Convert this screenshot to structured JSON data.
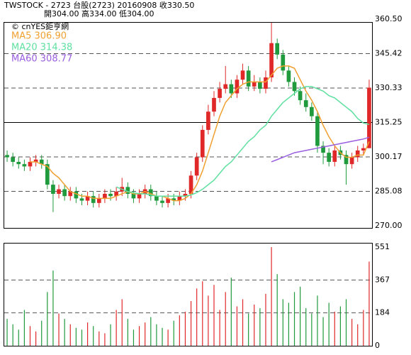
{
  "chart_data": {
    "type": "candlestick",
    "title": "TWSTOCK - 2723 台股(2723) 20160908 收330.50",
    "subtitle": "開304.00 高334.00 低304.00",
    "source": "© cnYES鉅亨網",
    "up_color": "#e02828",
    "down_color": "#1f9a3c",
    "open": [
      301,
      300,
      298,
      297,
      296,
      298,
      299,
      297,
      288,
      284,
      286,
      283,
      285,
      282,
      281,
      283,
      280,
      282,
      284,
      283,
      285,
      287,
      284,
      282,
      284,
      286,
      283,
      281,
      280,
      282,
      281,
      283,
      284,
      292,
      300,
      312,
      320,
      326,
      330,
      332,
      328,
      334,
      338,
      331,
      333,
      330,
      335,
      350,
      345,
      338,
      333,
      329,
      325,
      322,
      318,
      305,
      302,
      298,
      303,
      301,
      297,
      300,
      303,
      304
    ],
    "high": [
      303,
      302,
      300,
      299,
      300,
      301,
      301,
      299,
      290,
      288,
      288,
      287,
      287,
      284,
      285,
      285,
      284,
      286,
      286,
      287,
      291,
      289,
      286,
      286,
      288,
      288,
      285,
      283,
      284,
      284,
      285,
      286,
      294,
      302,
      314,
      323,
      329,
      333,
      340,
      334,
      336,
      341,
      340,
      336,
      335,
      338,
      359,
      352,
      347,
      340,
      335,
      331,
      328,
      324,
      320,
      307,
      304,
      305,
      305,
      303,
      302,
      305,
      306,
      334
    ],
    "low": [
      298,
      296,
      295,
      294,
      294,
      296,
      295,
      286,
      276,
      282,
      281,
      281,
      280,
      279,
      279,
      278,
      278,
      280,
      281,
      281,
      283,
      282,
      280,
      280,
      282,
      281,
      279,
      278,
      278,
      279,
      279,
      281,
      282,
      290,
      298,
      310,
      318,
      324,
      328,
      326,
      326,
      332,
      329,
      329,
      328,
      328,
      333,
      343,
      336,
      331,
      327,
      323,
      320,
      316,
      302,
      297,
      296,
      296,
      299,
      288,
      295,
      298,
      301,
      304
    ],
    "close": [
      300,
      298,
      297,
      296,
      298,
      299,
      297,
      288,
      284,
      286,
      283,
      285,
      282,
      281,
      283,
      280,
      282,
      284,
      283,
      285,
      287,
      284,
      282,
      284,
      286,
      283,
      281,
      280,
      282,
      281,
      283,
      284,
      292,
      300,
      312,
      320,
      326,
      330,
      332,
      328,
      334,
      338,
      331,
      333,
      330,
      335,
      350,
      345,
      338,
      333,
      329,
      325,
      322,
      318,
      305,
      302,
      298,
      303,
      301,
      297,
      300,
      303,
      304,
      330.5
    ],
    "ylim": [
      270,
      360.5
    ],
    "yticks": [
      {
        "value": 270,
        "label": "270.00"
      },
      285.08,
      300.17,
      315.25,
      330.33,
      345.42,
      {
        "value": 360.5,
        "label": "360.50"
      }
    ],
    "series": [
      {
        "name": "MA5 306.90",
        "color": "#f0a030",
        "values": [
          null,
          null,
          null,
          null,
          298,
          298,
          297,
          296,
          293,
          291,
          288,
          285,
          284,
          283,
          283,
          282,
          282,
          282,
          282,
          283,
          284,
          285,
          284,
          284,
          285,
          284,
          283,
          283,
          282,
          281,
          281,
          282,
          284,
          288,
          294,
          302,
          310,
          318,
          324,
          327,
          330,
          332,
          333,
          333,
          333,
          333,
          336,
          339,
          340,
          340,
          339,
          334,
          329,
          325,
          320,
          314,
          309,
          305,
          302,
          300,
          300,
          301,
          301,
          306.9
        ]
      },
      {
        "name": "MA20 314.38",
        "color": "#5ee0a0",
        "values": [
          null,
          null,
          null,
          null,
          null,
          null,
          null,
          null,
          null,
          null,
          null,
          null,
          null,
          null,
          null,
          null,
          null,
          null,
          null,
          287,
          286,
          285,
          284.5,
          284,
          284,
          283.5,
          283,
          283,
          283,
          283,
          283,
          283,
          283.5,
          284.5,
          286,
          288,
          290,
          293,
          296,
          298,
          301,
          304,
          307,
          309,
          312,
          314,
          318,
          321,
          324,
          326,
          328,
          330,
          331,
          331,
          330,
          329,
          327,
          326,
          324,
          322,
          320,
          317,
          315,
          314.38
        ]
      },
      {
        "name": "MA60 308.77",
        "color": "#9a5ee0",
        "values": [
          null,
          null,
          null,
          null,
          null,
          null,
          null,
          null,
          null,
          null,
          null,
          null,
          null,
          null,
          null,
          null,
          null,
          null,
          null,
          null,
          null,
          null,
          null,
          null,
          null,
          null,
          null,
          null,
          null,
          null,
          null,
          null,
          null,
          null,
          null,
          null,
          null,
          null,
          null,
          null,
          null,
          null,
          null,
          null,
          null,
          null,
          298,
          299,
          300,
          301,
          302,
          302.5,
          303,
          303.5,
          304,
          304.5,
          305,
          305.5,
          306,
          306.5,
          307,
          307.5,
          308,
          308.77
        ]
      }
    ],
    "volume": {
      "values": [
        150,
        120,
        90,
        200,
        110,
        80,
        140,
        300,
        420,
        180,
        150,
        120,
        100,
        90,
        130,
        110,
        80,
        70,
        120,
        200,
        260,
        150,
        90,
        110,
        130,
        160,
        120,
        100,
        90,
        140,
        170,
        190,
        250,
        320,
        360,
        280,
        340,
        200,
        300,
        380,
        220,
        260,
        180,
        230,
        210,
        290,
        551,
        400,
        260,
        240,
        300,
        330,
        210,
        180,
        280,
        160,
        240,
        190,
        220,
        260,
        150,
        120,
        200,
        470
      ],
      "ylim": [
        0,
        551
      ],
      "yticks": [
        0,
        184,
        367,
        551
      ]
    }
  }
}
